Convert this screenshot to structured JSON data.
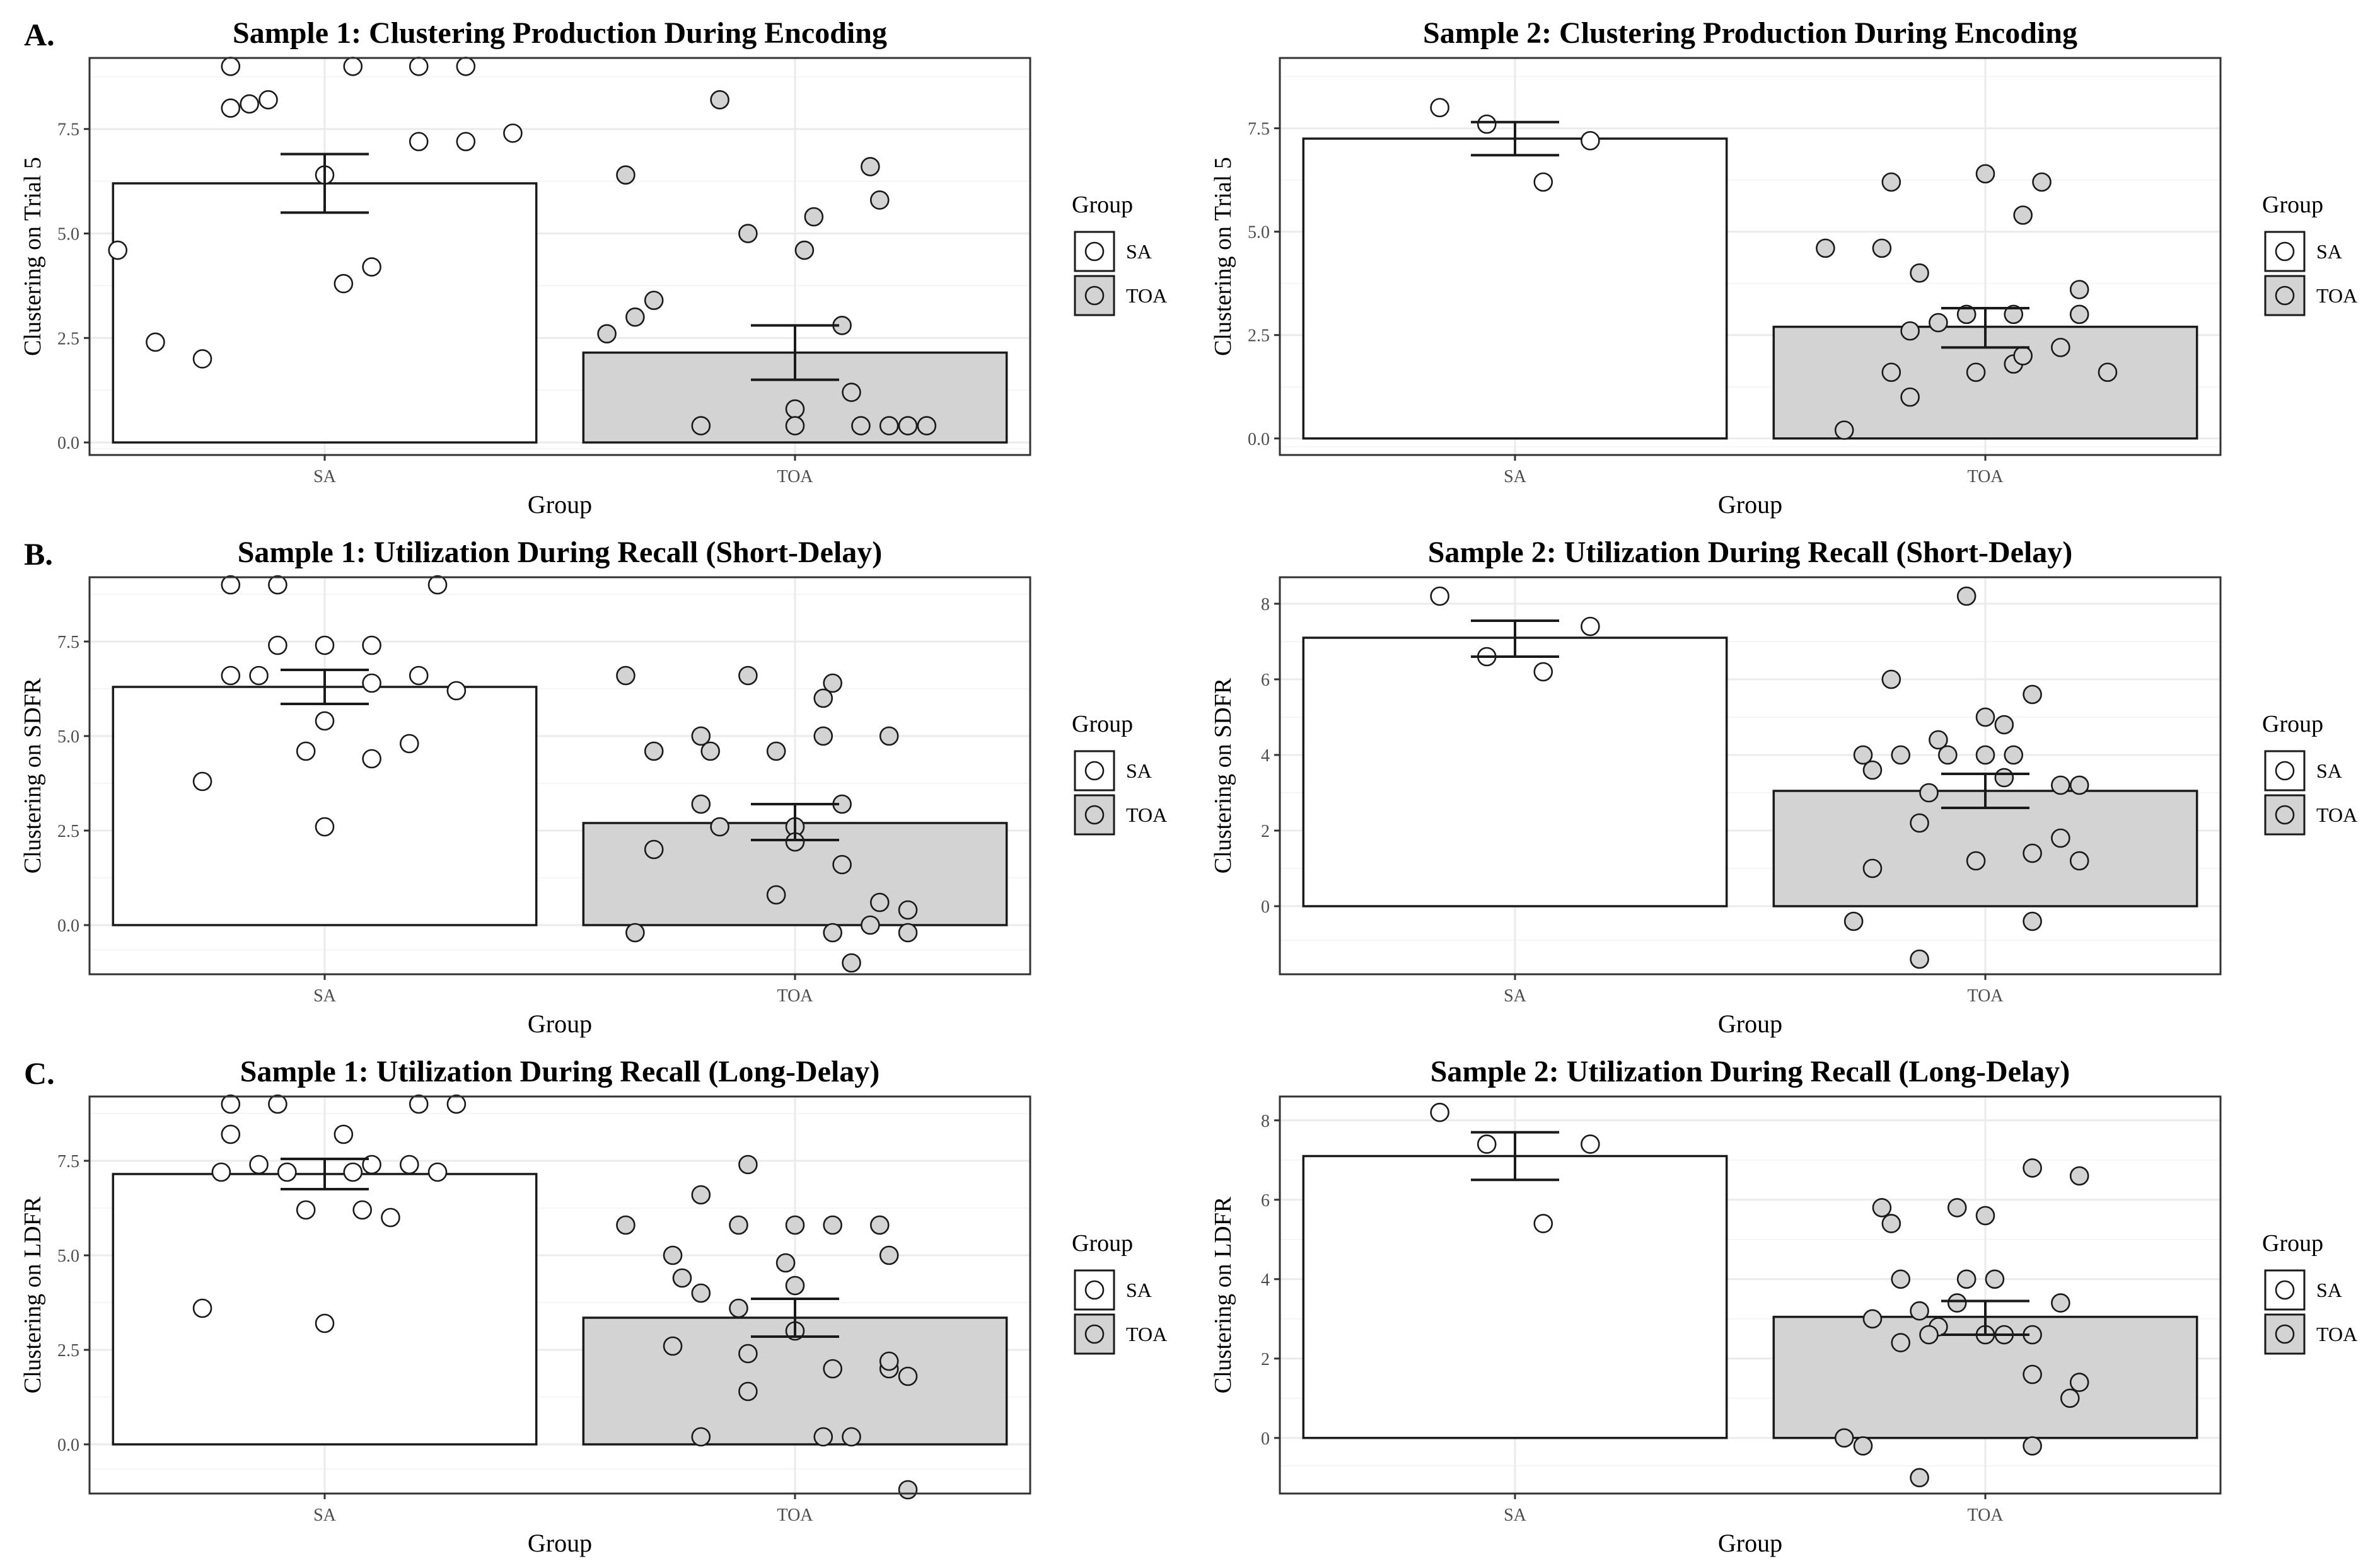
{
  "figure": {
    "row_labels": [
      "A.",
      "B.",
      "C."
    ],
    "legend": {
      "title": "Group",
      "items": [
        {
          "label": "SA",
          "fill": "#ffffff"
        },
        {
          "label": "TOA",
          "fill": "#d3d3d3"
        }
      ]
    },
    "colors": {
      "sa_fill": "#ffffff",
      "toa_fill": "#d3d3d3",
      "stroke": "#1a1a1a",
      "grid": "#ebebeb",
      "panel_border": "#333333"
    }
  },
  "chart_data": [
    {
      "type": "bar",
      "title": "Sample 1: Clustering Production During Encoding",
      "xlabel": "Group",
      "ylabel": "Clustering on Trial 5",
      "categories": [
        "SA",
        "TOA"
      ],
      "ylim": [
        -0.3,
        9.2
      ],
      "yticks": [
        0,
        2.5,
        5,
        7.5
      ],
      "ytick_labels": [
        "0.0",
        "2.5",
        "5.0",
        "7.5"
      ],
      "series": [
        {
          "name": "SA",
          "mean": 6.2,
          "se_low": 5.5,
          "se_high": 6.9,
          "points": [
            [
              -0.1,
              9
            ],
            [
              0.03,
              9
            ],
            [
              0.1,
              9
            ],
            [
              0.15,
              9
            ],
            [
              -0.06,
              8.2
            ],
            [
              -0.1,
              8.0
            ],
            [
              -0.08,
              8.1
            ],
            [
              0.1,
              7.2
            ],
            [
              0.15,
              7.2
            ],
            [
              0.2,
              7.4
            ],
            [
              0.0,
              6.4
            ],
            [
              -0.22,
              4.6
            ],
            [
              0.05,
              4.2
            ],
            [
              0.02,
              3.8
            ],
            [
              -0.18,
              2.4
            ],
            [
              -0.13,
              2.0
            ]
          ]
        },
        {
          "name": "TOA",
          "mean": 2.15,
          "se_low": 1.5,
          "se_high": 2.8,
          "points": [
            [
              -0.08,
              8.2
            ],
            [
              0.08,
              6.6
            ],
            [
              -0.18,
              6.4
            ],
            [
              0.09,
              5.8
            ],
            [
              0.02,
              5.4
            ],
            [
              -0.05,
              5.0
            ],
            [
              0.01,
              4.6
            ],
            [
              -0.15,
              3.4
            ],
            [
              -0.17,
              3.0
            ],
            [
              -0.2,
              2.6
            ],
            [
              0.05,
              2.8
            ],
            [
              0.06,
              1.2
            ],
            [
              0.0,
              0.8
            ],
            [
              -0.1,
              0.4
            ],
            [
              0.0,
              0.4
            ],
            [
              0.07,
              0.4
            ],
            [
              0.1,
              0.4
            ],
            [
              0.12,
              0.4
            ],
            [
              0.14,
              0.4
            ]
          ]
        }
      ]
    },
    {
      "type": "bar",
      "title": "Sample 2: Clustering Production During Encoding",
      "xlabel": "Group",
      "ylabel": "Clustering on Trial 5",
      "categories": [
        "SA",
        "TOA"
      ],
      "ylim": [
        -0.4,
        9.2
      ],
      "yticks": [
        0,
        2.5,
        5,
        7.5
      ],
      "ytick_labels": [
        "0.0",
        "2.5",
        "5.0",
        "7.5"
      ],
      "series": [
        {
          "name": "SA",
          "mean": 7.25,
          "se_low": 6.85,
          "se_high": 7.65,
          "points": [
            [
              -0.08,
              8.0
            ],
            [
              -0.03,
              7.6
            ],
            [
              0.08,
              7.2
            ],
            [
              0.03,
              6.2
            ]
          ]
        },
        {
          "name": "TOA",
          "mean": 2.7,
          "se_low": 2.2,
          "se_high": 3.15,
          "points": [
            [
              -0.1,
              6.2
            ],
            [
              0.0,
              6.4
            ],
            [
              0.06,
              6.2
            ],
            [
              0.04,
              5.4
            ],
            [
              -0.17,
              4.6
            ],
            [
              -0.11,
              4.6
            ],
            [
              -0.07,
              4.0
            ],
            [
              -0.02,
              3.0
            ],
            [
              0.03,
              3.0
            ],
            [
              0.1,
              3.6
            ],
            [
              0.1,
              3.0
            ],
            [
              -0.05,
              2.8
            ],
            [
              0.08,
              2.2
            ],
            [
              -0.08,
              2.6
            ],
            [
              -0.1,
              1.6
            ],
            [
              -0.01,
              1.6
            ],
            [
              0.03,
              1.8
            ],
            [
              0.04,
              2.0
            ],
            [
              0.13,
              1.6
            ],
            [
              -0.08,
              1.0
            ],
            [
              -0.15,
              0.2
            ]
          ]
        }
      ]
    },
    {
      "type": "bar",
      "title": "Sample 1: Utilization During Recall (Short-Delay)",
      "xlabel": "Group",
      "ylabel": "Clustering on SDFR",
      "categories": [
        "SA",
        "TOA"
      ],
      "ylim": [
        -1.3,
        9.2
      ],
      "yticks": [
        0,
        2.5,
        5,
        7.5
      ],
      "ytick_labels": [
        "0.0",
        "2.5",
        "5.0",
        "7.5"
      ],
      "series": [
        {
          "name": "SA",
          "mean": 6.3,
          "se_low": 5.85,
          "se_high": 6.75,
          "points": [
            [
              -0.1,
              9
            ],
            [
              -0.05,
              9
            ],
            [
              0.12,
              9
            ],
            [
              -0.05,
              7.4
            ],
            [
              0.0,
              7.4
            ],
            [
              0.05,
              7.4
            ],
            [
              -0.1,
              6.6
            ],
            [
              -0.07,
              6.6
            ],
            [
              0.05,
              6.4
            ],
            [
              0.1,
              6.6
            ],
            [
              0.14,
              6.2
            ],
            [
              0.0,
              5.4
            ],
            [
              -0.02,
              4.6
            ],
            [
              0.09,
              4.8
            ],
            [
              0.05,
              4.4
            ],
            [
              -0.13,
              3.8
            ],
            [
              0.0,
              2.6
            ]
          ]
        },
        {
          "name": "TOA",
          "mean": 2.7,
          "se_low": 2.25,
          "se_high": 3.2,
          "points": [
            [
              -0.05,
              6.6
            ],
            [
              -0.18,
              6.6
            ],
            [
              0.04,
              6.4
            ],
            [
              0.03,
              6.0
            ],
            [
              -0.1,
              5.0
            ],
            [
              -0.15,
              4.6
            ],
            [
              -0.09,
              4.6
            ],
            [
              -0.02,
              4.6
            ],
            [
              0.03,
              5.0
            ],
            [
              0.1,
              5.0
            ],
            [
              -0.1,
              3.2
            ],
            [
              0.05,
              3.2
            ],
            [
              -0.08,
              2.6
            ],
            [
              0.0,
              2.6
            ],
            [
              -0.15,
              2.0
            ],
            [
              0.0,
              2.2
            ],
            [
              0.05,
              1.6
            ],
            [
              -0.02,
              0.8
            ],
            [
              0.09,
              0.6
            ],
            [
              0.12,
              0.4
            ],
            [
              -0.17,
              -0.2
            ],
            [
              0.04,
              -0.2
            ],
            [
              0.12,
              -0.2
            ],
            [
              0.08,
              0.0
            ],
            [
              0.06,
              -1.0
            ]
          ]
        }
      ]
    },
    {
      "type": "bar",
      "title": "Sample 2: Utilization During Recall (Short-Delay)",
      "xlabel": "Group",
      "ylabel": "Clustering on SDFR",
      "categories": [
        "SA",
        "TOA"
      ],
      "ylim": [
        -1.8,
        8.7
      ],
      "yticks": [
        0,
        2,
        4,
        6,
        8
      ],
      "ytick_labels": [
        "0",
        "2",
        "4",
        "6",
        "8"
      ],
      "series": [
        {
          "name": "SA",
          "mean": 7.1,
          "se_low": 6.6,
          "se_high": 7.55,
          "points": [
            [
              -0.08,
              8.2
            ],
            [
              0.08,
              7.4
            ],
            [
              -0.03,
              6.6
            ],
            [
              0.03,
              6.2
            ]
          ]
        },
        {
          "name": "TOA",
          "mean": 3.05,
          "se_low": 2.6,
          "se_high": 3.5,
          "points": [
            [
              -0.02,
              8.2
            ],
            [
              -0.1,
              6.0
            ],
            [
              0.05,
              5.6
            ],
            [
              0.0,
              5.0
            ],
            [
              -0.05,
              4.4
            ],
            [
              0.02,
              4.8
            ],
            [
              -0.13,
              4.0
            ],
            [
              -0.09,
              4.0
            ],
            [
              -0.04,
              4.0
            ],
            [
              0.0,
              4.0
            ],
            [
              0.03,
              4.0
            ],
            [
              -0.12,
              3.6
            ],
            [
              0.02,
              3.4
            ],
            [
              0.08,
              3.2
            ],
            [
              0.1,
              3.2
            ],
            [
              -0.06,
              3.0
            ],
            [
              -0.07,
              2.2
            ],
            [
              0.08,
              1.8
            ],
            [
              0.05,
              1.4
            ],
            [
              0.1,
              1.2
            ],
            [
              -0.01,
              1.2
            ],
            [
              -0.12,
              1.0
            ],
            [
              -0.14,
              -0.4
            ],
            [
              0.05,
              -0.4
            ],
            [
              -0.07,
              -1.4
            ]
          ]
        }
      ]
    },
    {
      "type": "bar",
      "title": "Sample 1: Utilization During Recall (Long-Delay)",
      "xlabel": "Group",
      "ylabel": "Clustering on LDFR",
      "categories": [
        "SA",
        "TOA"
      ],
      "ylim": [
        -1.3,
        9.2
      ],
      "yticks": [
        0,
        2.5,
        5,
        7.5
      ],
      "ytick_labels": [
        "0.0",
        "2.5",
        "5.0",
        "7.5"
      ],
      "series": [
        {
          "name": "SA",
          "mean": 7.15,
          "se_low": 6.75,
          "se_high": 7.55,
          "points": [
            [
              -0.1,
              9
            ],
            [
              -0.05,
              9
            ],
            [
              0.1,
              9
            ],
            [
              0.14,
              9
            ],
            [
              -0.1,
              8.2
            ],
            [
              0.02,
              8.2
            ],
            [
              -0.11,
              7.2
            ],
            [
              -0.04,
              7.2
            ],
            [
              -0.07,
              7.4
            ],
            [
              0.03,
              7.2
            ],
            [
              0.05,
              7.4
            ],
            [
              0.09,
              7.4
            ],
            [
              0.12,
              7.2
            ],
            [
              -0.02,
              6.2
            ],
            [
              0.04,
              6.2
            ],
            [
              0.07,
              6.0
            ],
            [
              -0.13,
              3.6
            ],
            [
              0.0,
              3.2
            ]
          ]
        },
        {
          "name": "TOA",
          "mean": 3.35,
          "se_low": 2.85,
          "se_high": 3.85,
          "points": [
            [
              -0.05,
              7.4
            ],
            [
              -0.1,
              6.6
            ],
            [
              -0.18,
              5.8
            ],
            [
              -0.06,
              5.8
            ],
            [
              0.0,
              5.8
            ],
            [
              0.04,
              5.8
            ],
            [
              0.09,
              5.8
            ],
            [
              -0.13,
              5.0
            ],
            [
              -0.01,
              4.8
            ],
            [
              0.1,
              5.0
            ],
            [
              -0.12,
              4.4
            ],
            [
              -0.1,
              4.0
            ],
            [
              0.0,
              4.2
            ],
            [
              -0.06,
              3.6
            ],
            [
              0.0,
              3.0
            ],
            [
              -0.13,
              2.6
            ],
            [
              -0.05,
              2.4
            ],
            [
              0.04,
              2.0
            ],
            [
              0.1,
              2.0
            ],
            [
              0.1,
              2.2
            ],
            [
              0.12,
              1.8
            ],
            [
              -0.05,
              1.4
            ],
            [
              -0.1,
              0.2
            ],
            [
              0.03,
              0.2
            ],
            [
              0.06,
              0.2
            ],
            [
              0.12,
              -1.2
            ]
          ]
        }
      ]
    },
    {
      "type": "bar",
      "title": "Sample 2: Utilization During Recall (Long-Delay)",
      "xlabel": "Group",
      "ylabel": "Clustering on LDFR",
      "categories": [
        "SA",
        "TOA"
      ],
      "ylim": [
        -1.4,
        8.6
      ],
      "yticks": [
        0,
        2,
        4,
        6,
        8
      ],
      "ytick_labels": [
        "0",
        "2",
        "4",
        "6",
        "8"
      ],
      "series": [
        {
          "name": "SA",
          "mean": 7.1,
          "se_low": 6.5,
          "se_high": 7.7,
          "points": [
            [
              -0.08,
              8.2
            ],
            [
              -0.03,
              7.4
            ],
            [
              0.08,
              7.4
            ],
            [
              0.03,
              5.4
            ]
          ]
        },
        {
          "name": "TOA",
          "mean": 3.05,
          "se_low": 2.6,
          "se_high": 3.45,
          "points": [
            [
              0.05,
              6.8
            ],
            [
              0.1,
              6.6
            ],
            [
              -0.11,
              5.8
            ],
            [
              -0.03,
              5.8
            ],
            [
              0.0,
              5.6
            ],
            [
              -0.1,
              5.4
            ],
            [
              -0.09,
              4.0
            ],
            [
              -0.02,
              4.0
            ],
            [
              0.01,
              4.0
            ],
            [
              -0.03,
              3.4
            ],
            [
              -0.07,
              3.2
            ],
            [
              0.08,
              3.4
            ],
            [
              -0.12,
              3.0
            ],
            [
              -0.05,
              2.8
            ],
            [
              0.02,
              2.6
            ],
            [
              0.05,
              2.6
            ],
            [
              0.0,
              2.6
            ],
            [
              -0.09,
              2.4
            ],
            [
              -0.06,
              2.6
            ],
            [
              0.1,
              1.4
            ],
            [
              0.05,
              1.6
            ],
            [
              0.09,
              1.0
            ],
            [
              -0.15,
              0.0
            ],
            [
              -0.13,
              -0.2
            ],
            [
              0.05,
              -0.2
            ],
            [
              -0.07,
              -1.0
            ]
          ]
        }
      ]
    }
  ]
}
